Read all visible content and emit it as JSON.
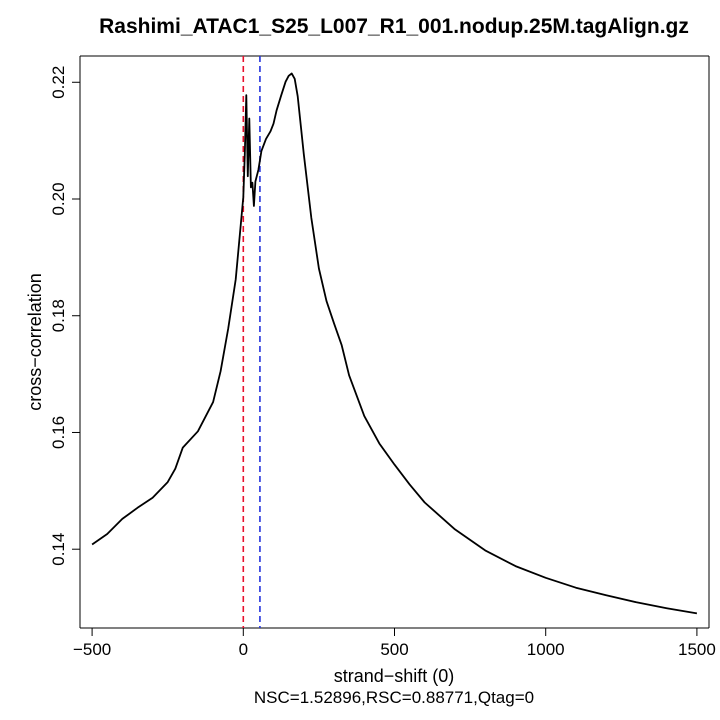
{
  "chart_data": {
    "type": "line",
    "title": "Rashimi_ATAC1_S25_L007_R1_001.nodup.25M.tagAlign.gz",
    "xlabel": "strand−shift (0)",
    "ylabel": "cross−correlation",
    "subtitle": "NSC=1.52896,RSC=0.88771,Qtag=0",
    "xlim": [
      -540,
      1540
    ],
    "ylim": [
      0.1265,
      0.2245
    ],
    "x_ticks": [
      -500,
      0,
      500,
      1000,
      1500
    ],
    "x_tick_labels": [
      "−500",
      "0",
      "500",
      "1000",
      "1500"
    ],
    "y_ticks": [
      0.14,
      0.16,
      0.18,
      0.2,
      0.22
    ],
    "y_tick_labels": [
      "0.14",
      "0.16",
      "0.18",
      "0.20",
      "0.22"
    ],
    "grid": false,
    "series": [
      {
        "color": "#000000",
        "x": [
          -500,
          -450,
          -400,
          -350,
          -300,
          -250,
          -225,
          -200,
          -150,
          -100,
          -75,
          -50,
          -25,
          0,
          5,
          10,
          15,
          20,
          25,
          30,
          35,
          40,
          50,
          60,
          75,
          90,
          100,
          110,
          125,
          140,
          150,
          160,
          170,
          180,
          200,
          225,
          250,
          275,
          300,
          325,
          350,
          400,
          450,
          500,
          550,
          600,
          700,
          800,
          900,
          1000,
          1100,
          1200,
          1300,
          1400,
          1500
        ],
        "y": [
          0.1408,
          0.1426,
          0.1452,
          0.1471,
          0.1488,
          0.1515,
          0.1538,
          0.1574,
          0.1602,
          0.1652,
          0.1705,
          0.1778,
          0.1862,
          0.2003,
          0.2077,
          0.2178,
          0.2039,
          0.2138,
          0.202,
          0.2028,
          0.1988,
          0.203,
          0.205,
          0.2082,
          0.2103,
          0.2116,
          0.2129,
          0.2152,
          0.2177,
          0.2201,
          0.2211,
          0.2215,
          0.2206,
          0.2176,
          0.2077,
          0.1968,
          0.1881,
          0.1825,
          0.1787,
          0.175,
          0.1698,
          0.1628,
          0.1581,
          0.1545,
          0.1511,
          0.148,
          0.1434,
          0.1398,
          0.1371,
          0.1351,
          0.1334,
          0.1321,
          0.1309,
          0.1299,
          0.129
        ]
      }
    ],
    "vlines": [
      {
        "x": 0,
        "color": "#e8112d",
        "style": "dashed"
      },
      {
        "x": 55,
        "color": "#2233dd",
        "style": "dashed"
      }
    ]
  }
}
